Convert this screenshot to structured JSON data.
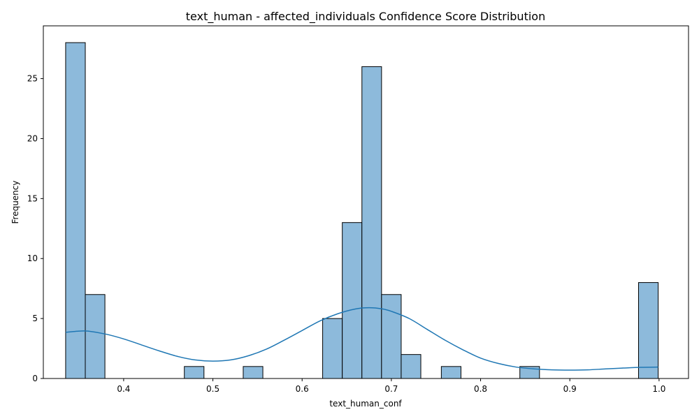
{
  "chart_data": {
    "type": "bar",
    "title": "text_human - affected_individuals Confidence Score Distribution",
    "xlabel": "text_human_conf",
    "ylabel": "Frequency",
    "xlim": [
      0.31,
      1.033
    ],
    "ylim": [
      0,
      29.4
    ],
    "x_ticks": [
      0.4,
      0.5,
      0.6,
      0.7,
      0.8,
      0.9,
      1.0
    ],
    "x_tick_labels": [
      "0.4",
      "0.5",
      "0.6",
      "0.7",
      "0.8",
      "0.9",
      "1.0"
    ],
    "y_ticks": [
      0,
      5,
      10,
      15,
      20,
      25
    ],
    "y_tick_labels": [
      "0",
      "5",
      "10",
      "15",
      "20",
      "25"
    ],
    "grid": false,
    "bar_color": "#8dbadb",
    "edge_color": "#000000",
    "kde_color": "#1f77b4",
    "bins": [
      {
        "x0": 0.335,
        "x1": 0.357,
        "count": 28
      },
      {
        "x0": 0.357,
        "x1": 0.379,
        "count": 7
      },
      {
        "x0": 0.379,
        "x1": 0.401,
        "count": 0
      },
      {
        "x0": 0.401,
        "x1": 0.423,
        "count": 0
      },
      {
        "x0": 0.423,
        "x1": 0.446,
        "count": 0
      },
      {
        "x0": 0.446,
        "x1": 0.468,
        "count": 0
      },
      {
        "x0": 0.468,
        "x1": 0.49,
        "count": 1
      },
      {
        "x0": 0.49,
        "x1": 0.512,
        "count": 0
      },
      {
        "x0": 0.512,
        "x1": 0.534,
        "count": 0
      },
      {
        "x0": 0.534,
        "x1": 0.556,
        "count": 1
      },
      {
        "x0": 0.556,
        "x1": 0.578,
        "count": 0
      },
      {
        "x0": 0.578,
        "x1": 0.601,
        "count": 0
      },
      {
        "x0": 0.601,
        "x1": 0.623,
        "count": 0
      },
      {
        "x0": 0.623,
        "x1": 0.645,
        "count": 5
      },
      {
        "x0": 0.645,
        "x1": 0.667,
        "count": 13
      },
      {
        "x0": 0.667,
        "x1": 0.689,
        "count": 26
      },
      {
        "x0": 0.689,
        "x1": 0.711,
        "count": 7
      },
      {
        "x0": 0.711,
        "x1": 0.733,
        "count": 2
      },
      {
        "x0": 0.733,
        "x1": 0.756,
        "count": 0
      },
      {
        "x0": 0.756,
        "x1": 0.778,
        "count": 1
      },
      {
        "x0": 0.778,
        "x1": 0.8,
        "count": 0
      },
      {
        "x0": 0.8,
        "x1": 0.822,
        "count": 0
      },
      {
        "x0": 0.822,
        "x1": 0.844,
        "count": 0
      },
      {
        "x0": 0.844,
        "x1": 0.866,
        "count": 1
      },
      {
        "x0": 0.866,
        "x1": 0.888,
        "count": 0
      },
      {
        "x0": 0.888,
        "x1": 0.911,
        "count": 0
      },
      {
        "x0": 0.911,
        "x1": 0.933,
        "count": 0
      },
      {
        "x0": 0.933,
        "x1": 0.955,
        "count": 0
      },
      {
        "x0": 0.955,
        "x1": 0.977,
        "count": 0
      },
      {
        "x0": 0.977,
        "x1": 0.999,
        "count": 8
      }
    ],
    "kde": {
      "x": [
        0.335,
        0.35,
        0.36,
        0.38,
        0.4,
        0.42,
        0.44,
        0.46,
        0.48,
        0.5,
        0.52,
        0.54,
        0.56,
        0.58,
        0.6,
        0.62,
        0.64,
        0.66,
        0.675,
        0.69,
        0.7,
        0.72,
        0.74,
        0.76,
        0.78,
        0.8,
        0.82,
        0.84,
        0.86,
        0.88,
        0.9,
        0.92,
        0.94,
        0.96,
        0.98,
        0.999
      ],
      "y": [
        3.85,
        3.95,
        3.95,
        3.7,
        3.3,
        2.8,
        2.3,
        1.85,
        1.55,
        1.45,
        1.55,
        1.9,
        2.45,
        3.2,
        4.0,
        4.8,
        5.4,
        5.8,
        5.9,
        5.8,
        5.6,
        5.0,
        4.1,
        3.2,
        2.4,
        1.7,
        1.25,
        0.95,
        0.8,
        0.72,
        0.7,
        0.72,
        0.8,
        0.87,
        0.93,
        0.95
      ]
    }
  }
}
